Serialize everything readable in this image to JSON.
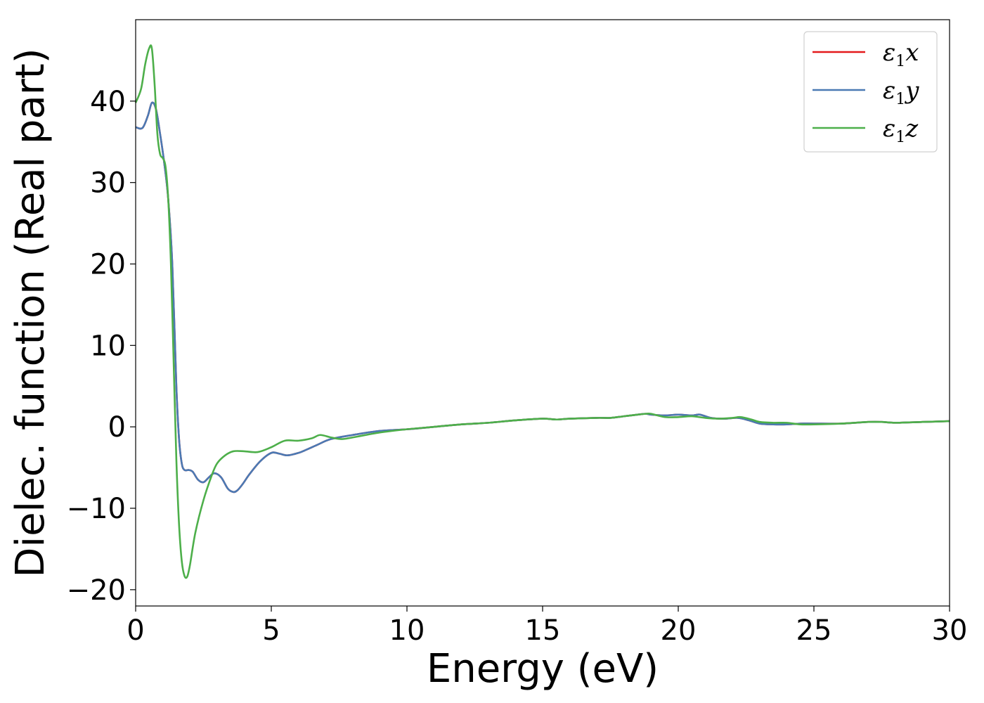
{
  "chart_data": {
    "type": "line",
    "xlabel": "Energy (eV)",
    "ylabel": "Dielec. function (Real part)",
    "xlim": [
      0,
      30
    ],
    "ylim": [
      -22,
      50
    ],
    "xticks": [
      0,
      5,
      10,
      15,
      20,
      25,
      30
    ],
    "xtick_labels": [
      "0",
      "5",
      "10",
      "15",
      "20",
      "25",
      "30"
    ],
    "yticks": [
      -20,
      -10,
      0,
      10,
      20,
      30,
      40
    ],
    "ytick_labels": [
      "−20",
      "−10",
      "0",
      "10",
      "20",
      "30",
      "40"
    ],
    "grid": false,
    "legend": "top-right",
    "series": [
      {
        "name": "ε₁x",
        "legend_base": "ε",
        "legend_sub": "1",
        "legend_var": "x",
        "color": "#e41a1c",
        "x": [
          0,
          0.25,
          0.45,
          0.6,
          0.75,
          0.9,
          1.05,
          1.2,
          1.35,
          1.5,
          1.6,
          1.7,
          1.8,
          1.95,
          2.1,
          2.3,
          2.5,
          2.7,
          2.9,
          3.15,
          3.4,
          3.6,
          3.75,
          3.95,
          4.2,
          4.6,
          5.0,
          5.3,
          5.6,
          6.0,
          6.3,
          6.7,
          7.2,
          8.0,
          9.0,
          10.0,
          11.0,
          12.0,
          13.0,
          14.0,
          15.0,
          15.5,
          16.0,
          17.0,
          17.5,
          18.0,
          18.5,
          18.8,
          19.0,
          19.5,
          20.0,
          20.5,
          20.8,
          21.2,
          21.7,
          22.2,
          22.6,
          23.0,
          23.5,
          24.0,
          24.5,
          25.0,
          26.0,
          27.0,
          27.5,
          28.0,
          29.0,
          30.0
        ],
        "y": [
          36.8,
          36.7,
          38.2,
          39.8,
          39.0,
          36.0,
          32.5,
          28.0,
          20.0,
          5.0,
          -1.5,
          -4.5,
          -5.3,
          -5.3,
          -5.5,
          -6.5,
          -6.8,
          -6.2,
          -5.7,
          -6.2,
          -7.6,
          -8.0,
          -7.8,
          -7.0,
          -5.8,
          -4.2,
          -3.2,
          -3.3,
          -3.5,
          -3.2,
          -2.8,
          -2.2,
          -1.5,
          -1.0,
          -0.5,
          -0.3,
          0.0,
          0.3,
          0.5,
          0.8,
          1.0,
          0.9,
          1.0,
          1.1,
          1.1,
          1.3,
          1.5,
          1.6,
          1.5,
          1.4,
          1.5,
          1.4,
          1.5,
          1.1,
          1.0,
          1.1,
          0.8,
          0.4,
          0.3,
          0.3,
          0.4,
          0.4,
          0.4,
          0.6,
          0.6,
          0.5,
          0.6,
          0.7
        ]
      },
      {
        "name": "ε₁y",
        "legend_base": "ε",
        "legend_sub": "1",
        "legend_var": "y",
        "color": "#4a7ab4",
        "x": [
          0,
          0.25,
          0.45,
          0.6,
          0.75,
          0.9,
          1.05,
          1.2,
          1.35,
          1.5,
          1.6,
          1.7,
          1.8,
          1.95,
          2.1,
          2.3,
          2.5,
          2.7,
          2.9,
          3.15,
          3.4,
          3.6,
          3.75,
          3.95,
          4.2,
          4.6,
          5.0,
          5.3,
          5.6,
          6.0,
          6.3,
          6.7,
          7.2,
          8.0,
          9.0,
          10.0,
          11.0,
          12.0,
          13.0,
          14.0,
          15.0,
          15.5,
          16.0,
          17.0,
          17.5,
          18.0,
          18.5,
          18.8,
          19.0,
          19.5,
          20.0,
          20.5,
          20.8,
          21.2,
          21.7,
          22.2,
          22.6,
          23.0,
          23.5,
          24.0,
          24.5,
          25.0,
          26.0,
          27.0,
          27.5,
          28.0,
          29.0,
          30.0
        ],
        "y": [
          36.8,
          36.7,
          38.2,
          39.8,
          39.0,
          36.0,
          32.5,
          28.0,
          20.0,
          5.0,
          -1.5,
          -4.5,
          -5.3,
          -5.3,
          -5.5,
          -6.5,
          -6.8,
          -6.2,
          -5.7,
          -6.2,
          -7.6,
          -8.0,
          -7.8,
          -7.0,
          -5.8,
          -4.2,
          -3.2,
          -3.3,
          -3.5,
          -3.2,
          -2.8,
          -2.2,
          -1.5,
          -1.0,
          -0.5,
          -0.3,
          0.0,
          0.3,
          0.5,
          0.8,
          1.0,
          0.9,
          1.0,
          1.1,
          1.1,
          1.3,
          1.5,
          1.6,
          1.5,
          1.4,
          1.5,
          1.4,
          1.5,
          1.1,
          1.0,
          1.1,
          0.8,
          0.4,
          0.3,
          0.3,
          0.4,
          0.4,
          0.4,
          0.6,
          0.6,
          0.5,
          0.6,
          0.7
        ]
      },
      {
        "name": "ε₁z",
        "legend_base": "ε",
        "legend_sub": "1",
        "legend_var": "z",
        "color": "#4daf4a",
        "x": [
          0,
          0.2,
          0.35,
          0.5,
          0.6,
          0.7,
          0.8,
          0.9,
          1.0,
          1.1,
          1.2,
          1.3,
          1.4,
          1.5,
          1.6,
          1.7,
          1.8,
          1.9,
          2.0,
          2.2,
          2.5,
          2.8,
          3.0,
          3.3,
          3.6,
          4.0,
          4.5,
          5.0,
          5.5,
          6.0,
          6.5,
          6.8,
          7.2,
          7.6,
          8.0,
          9.0,
          10.0,
          11.0,
          12.0,
          13.0,
          14.0,
          15.0,
          15.5,
          16.0,
          17.0,
          17.5,
          18.0,
          18.5,
          18.8,
          19.0,
          19.5,
          20.0,
          20.5,
          21.0,
          21.5,
          22.0,
          22.3,
          22.7,
          23.0,
          23.5,
          24.0,
          24.5,
          25.0,
          26.0,
          27.0,
          27.5,
          28.0,
          29.0,
          30.0
        ],
        "y": [
          39.8,
          41.5,
          44.5,
          46.5,
          46.4,
          42.0,
          36.0,
          33.5,
          33.0,
          32.0,
          28.0,
          20.0,
          8.0,
          -4.0,
          -12.0,
          -16.5,
          -18.3,
          -18.4,
          -17.0,
          -13.0,
          -9.0,
          -6.0,
          -4.5,
          -3.5,
          -3.0,
          -3.0,
          -3.1,
          -2.5,
          -1.7,
          -1.7,
          -1.4,
          -1.0,
          -1.3,
          -1.5,
          -1.3,
          -0.7,
          -0.3,
          0.0,
          0.3,
          0.5,
          0.8,
          1.0,
          0.9,
          1.0,
          1.1,
          1.1,
          1.3,
          1.5,
          1.6,
          1.6,
          1.2,
          1.2,
          1.3,
          1.1,
          1.0,
          1.1,
          1.2,
          0.9,
          0.6,
          0.5,
          0.5,
          0.3,
          0.3,
          0.4,
          0.6,
          0.6,
          0.5,
          0.6,
          0.7
        ]
      }
    ]
  }
}
